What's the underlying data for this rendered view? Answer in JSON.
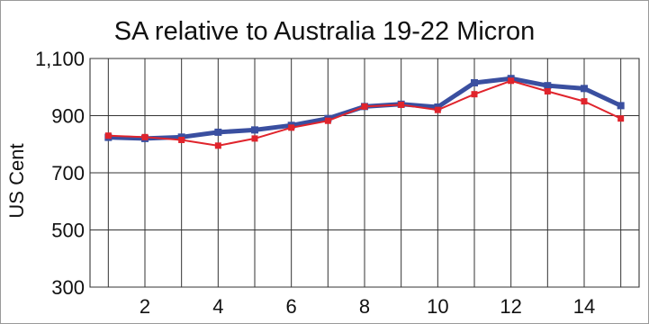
{
  "chart_data": {
    "type": "line",
    "title": "SA relative to Australia 19-22 Micron",
    "xlabel": "",
    "ylabel": "US Cent",
    "x": [
      1,
      2,
      3,
      4,
      5,
      6,
      7,
      8,
      9,
      10,
      11,
      12,
      13,
      14,
      15
    ],
    "xticks": [
      2,
      4,
      6,
      8,
      10,
      12,
      14
    ],
    "xtick_labels": [
      "2",
      "4",
      "6",
      "8",
      "10",
      "12",
      "14"
    ],
    "xlim": [
      0.5,
      15.5
    ],
    "ylim": [
      300,
      1100
    ],
    "yticks": [
      300,
      500,
      700,
      900,
      1100
    ],
    "ytick_labels": [
      "300",
      "500",
      "700",
      "900",
      "1,100"
    ],
    "grid": true,
    "series": [
      {
        "color": "#3a4fa0",
        "values": [
          824,
          820,
          825,
          842,
          850,
          866,
          890,
          932,
          940,
          930,
          1015,
          1030,
          1005,
          995,
          935
        ]
      },
      {
        "color": "#e0242c",
        "values": [
          830,
          825,
          815,
          795,
          820,
          858,
          882,
          932,
          938,
          920,
          975,
          1022,
          985,
          950,
          890
        ]
      }
    ]
  }
}
